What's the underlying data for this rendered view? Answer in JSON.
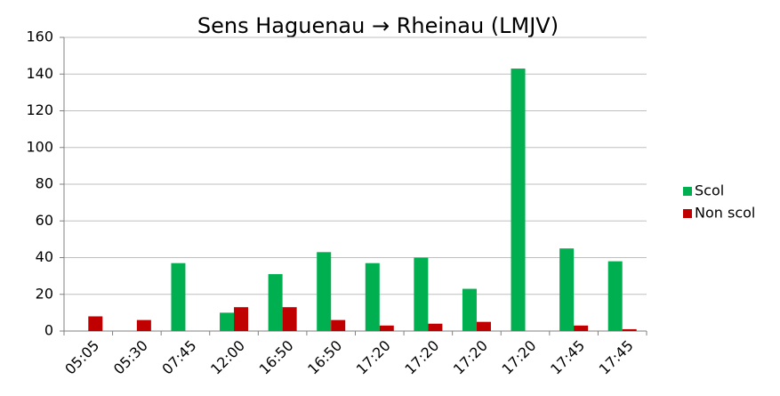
{
  "chart_data": {
    "type": "bar",
    "title": "Sens Haguenau → Rheinau (LMJV)",
    "categories": [
      "05:05",
      "05:30",
      "07:45",
      "12:00",
      "16:50",
      "16:50",
      "17:20",
      "17:20",
      "17:20",
      "17:20",
      "17:45",
      "17:45"
    ],
    "series": [
      {
        "name": "Scol",
        "color": "#00b050",
        "values": [
          0,
          0,
          37,
          10,
          31,
          43,
          37,
          40,
          23,
          143,
          45,
          38
        ]
      },
      {
        "name": "Non scol",
        "color": "#c00000",
        "values": [
          8,
          6,
          0,
          13,
          13,
          6,
          3,
          4,
          5,
          0,
          3,
          1
        ]
      }
    ],
    "ylim": [
      0,
      160
    ],
    "yticks": [
      0,
      20,
      40,
      60,
      80,
      100,
      120,
      140,
      160
    ],
    "grid": true,
    "legend": "right"
  }
}
